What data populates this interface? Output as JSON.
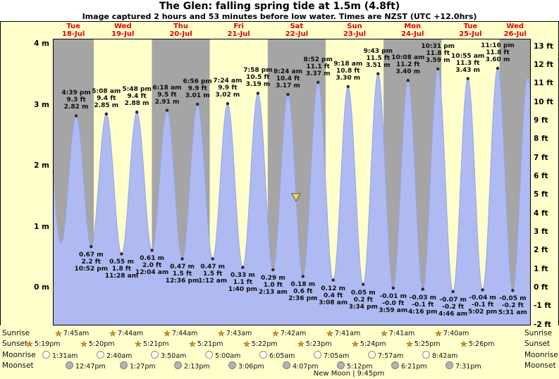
{
  "title": "The Glen: falling  spring tide at 1.5m (4.8ft)",
  "subtitle": "Image captured 2 hours and 53 minutes before low water. Times are NZST (UTC +12.0hrs)",
  "colors": {
    "page_cream": "#ffffcc",
    "band_gray": "#a5a5a5",
    "band_cream": "#ffffcc",
    "tide_fill": "#afbaf2",
    "tide_stroke": "#97a4e8",
    "day_label_red": "#e60000",
    "marker_yellow": "#f0e13a",
    "dot": "#2a2a2a"
  },
  "chart_data": {
    "type": "area",
    "title": "The Glen: falling  spring tide at 1.5m (4.8ft)",
    "subtitle": "Image captured 2 hours and 53 minutes before low water. Times are NZST (UTC +12.0hrs)",
    "ylabel_left_unit": "m",
    "ylabel_right_unit": "ft",
    "ylim_m": [
      -0.63,
      4.09
    ],
    "left_ticks": [
      "4 m",
      "3 m",
      "2 m",
      "1 m",
      "0 m"
    ],
    "right_ticks": [
      "13 ft",
      "12 ft",
      "11 ft",
      "10 ft",
      "9 ft",
      "8 ft",
      "7 ft",
      "6 ft",
      "5 ft",
      "4 ft",
      "3 ft",
      "2 ft",
      "1 ft",
      "0 ft",
      "-1 ft",
      "-2 ft"
    ],
    "days": [
      {
        "name": "Tue",
        "date": "18-Jul"
      },
      {
        "name": "Wed",
        "date": "19-Jul"
      },
      {
        "name": "Thu",
        "date": "20-Jul"
      },
      {
        "name": "Fri",
        "date": "21-Jul"
      },
      {
        "name": "Sat",
        "date": "22-Jul"
      },
      {
        "name": "Sun",
        "date": "23-Jul"
      },
      {
        "name": "Mon",
        "date": "24-Jul"
      },
      {
        "name": "Tue",
        "date": "25-Jul"
      },
      {
        "name": "Wed",
        "date": "26-Jul"
      }
    ],
    "tide_events": [
      {
        "kind": "high",
        "time": "4:39 pm",
        "ft": "9.3 ft",
        "m": "2.82 m"
      },
      {
        "kind": "low",
        "m": "0.67 m",
        "ft": "2.2 ft",
        "time": "10:52 pm"
      },
      {
        "kind": "high",
        "time": "5:08 am",
        "ft": "9.4 ft",
        "m": "2.85 m"
      },
      {
        "kind": "low",
        "m": "0.55 m",
        "ft": "1.8 ft",
        "time": "11:28 am"
      },
      {
        "kind": "high",
        "time": "5:48 pm",
        "ft": "9.4 ft",
        "m": "2.88 m"
      },
      {
        "kind": "low",
        "m": "0.61 m",
        "ft": "2.0 ft",
        "time": "12:04 am"
      },
      {
        "kind": "high",
        "time": "6:18 am",
        "ft": "9.5 ft",
        "m": "2.91 m"
      },
      {
        "kind": "low",
        "m": "0.47 m",
        "ft": "1.5 ft",
        "time": "12:36 pm"
      },
      {
        "kind": "high",
        "time": "6:56 pm",
        "ft": "9.9 ft",
        "m": "3.01 m"
      },
      {
        "kind": "low",
        "m": "0.47 m",
        "ft": "1.5 ft",
        "time": "1:12 am"
      },
      {
        "kind": "high",
        "time": "7:24 am",
        "ft": "9.9 ft",
        "m": "3.02 m"
      },
      {
        "kind": "low",
        "m": "0.33 m",
        "ft": "1.1 ft",
        "time": "1:40 pm"
      },
      {
        "kind": "high",
        "time": "7:58 pm",
        "ft": "10.5 ft",
        "m": "3.19 m"
      },
      {
        "kind": "low",
        "m": "0.29 m",
        "ft": "1.0 ft",
        "time": "2:13 am"
      },
      {
        "kind": "high",
        "time": "8:24 am",
        "ft": "10.4 ft",
        "m": "3.17 m"
      },
      {
        "kind": "low",
        "m": "0.18 m",
        "ft": "0.6 ft",
        "time": "2:36 pm"
      },
      {
        "kind": "high",
        "time": "8:52 pm",
        "ft": "11.1 ft",
        "m": "3.37 m"
      },
      {
        "kind": "low",
        "m": "0.12 m",
        "ft": "0.4 ft",
        "time": "3:08 am"
      },
      {
        "kind": "high",
        "time": "9:18 am",
        "ft": "10.8 ft",
        "m": "3.30 m"
      },
      {
        "kind": "low",
        "m": "0.05 m",
        "ft": "0.2 ft",
        "time": "3:34 pm"
      },
      {
        "kind": "high",
        "time": "9:43 pm",
        "ft": "11.5 ft",
        "m": "3.51 m"
      },
      {
        "kind": "low",
        "m": "-0.01 m",
        "ft": "-0.0 ft",
        "time": "3:59 am"
      },
      {
        "kind": "high",
        "time": "10:08 am",
        "ft": "11.2 ft",
        "m": "3.40 m"
      },
      {
        "kind": "low",
        "m": "-0.03 m",
        "ft": "-0.1 ft",
        "time": "4:16 pm"
      },
      {
        "kind": "high",
        "time": "10:31 pm",
        "ft": "11.8 ft",
        "m": "3.59 m"
      },
      {
        "kind": "low",
        "m": "-0.07 m",
        "ft": "-0.2 ft",
        "time": "4:46 am"
      },
      {
        "kind": "high",
        "time": "10:55 am",
        "ft": "11.3 ft",
        "m": "3.43 m"
      },
      {
        "kind": "low",
        "m": "-0.04 m",
        "ft": "-0.1 ft",
        "time": "5:02 pm"
      },
      {
        "kind": "high",
        "time": "11:16 pm",
        "ft": "11.8 ft",
        "m": "3.60 m"
      },
      {
        "kind": "low",
        "m": "-0.05 m",
        "ft": "-0.2 ft",
        "time": "5:31 am"
      }
    ],
    "now_marker": {
      "hours_from_first_day_midnight": 107.72,
      "height_m": 1.5,
      "height_label": "1.5m (4.8ft)",
      "state": "falling"
    }
  },
  "astro": {
    "sunrise": {
      "label": "Sunrise",
      "icon": "sun-star-icon",
      "times": [
        "7:45am",
        "7:44am",
        "7:44am",
        "7:43am",
        "7:42am",
        "7:41am",
        "7:41am",
        "7:40am"
      ]
    },
    "sunset": {
      "label": "Sunset",
      "icon": "sun-star-icon",
      "times": [
        "5:19pm",
        "5:20pm",
        "5:21pm",
        "5:21pm",
        "5:22pm",
        "5:23pm",
        "5:24pm",
        "5:25pm",
        "5:26pm"
      ]
    },
    "moonrise": {
      "label": "Moonrise",
      "icon": "moon-circle-icon",
      "times": [
        "1:31am",
        "2:40am",
        "3:50am",
        "5:00am",
        "6:05am",
        "7:05am",
        "7:57am",
        "8:42am"
      ]
    },
    "moonset": {
      "label": "Moonset",
      "icon": "moon-circle-icon",
      "times": [
        "12:47pm",
        "1:27pm",
        "2:13pm",
        "3:06pm",
        "4:07pm",
        "5:12pm",
        "6:21pm",
        "7:31pm"
      ]
    },
    "new_moon": "New Moon | 9:45pm"
  }
}
